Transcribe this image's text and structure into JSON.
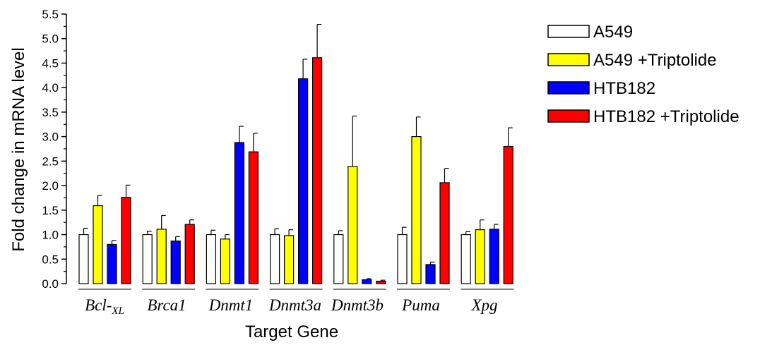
{
  "chart_data": {
    "type": "bar",
    "title": "",
    "xlabel": "Target Gene",
    "ylabel": "Fold change in mRNA level",
    "ylim": [
      0,
      5.5
    ],
    "yticks": [
      "0.0",
      "0.5",
      "1.0",
      "1.5",
      "2.0",
      "2.5",
      "3.0",
      "3.5",
      "4.0",
      "4.5",
      "5.0",
      "5.5"
    ],
    "categories": [
      {
        "base": "Bcl-",
        "sub": "XL"
      },
      {
        "base": "Brca1",
        "sub": ""
      },
      {
        "base": "Dnmt1",
        "sub": ""
      },
      {
        "base": "Dnmt3a",
        "sub": ""
      },
      {
        "base": "Dnmt3b",
        "sub": ""
      },
      {
        "base": "Puma",
        "sub": ""
      },
      {
        "base": "Xpg",
        "sub": ""
      }
    ],
    "series": [
      {
        "name": "A549",
        "color": "#ffffff",
        "values": [
          1.0,
          1.0,
          1.0,
          1.0,
          1.0,
          1.0,
          1.0
        ],
        "errors": [
          0.13,
          0.07,
          0.09,
          0.12,
          0.08,
          0.15,
          0.06
        ]
      },
      {
        "name": "A549 +Triptolide",
        "color": "#ffff00",
        "values": [
          1.59,
          1.11,
          0.91,
          0.98,
          2.39,
          3.0,
          1.1
        ],
        "errors": [
          0.21,
          0.28,
          0.09,
          0.12,
          1.03,
          0.4,
          0.2
        ]
      },
      {
        "name": "HTB182",
        "color": "#0000ff",
        "values": [
          0.8,
          0.87,
          2.88,
          4.18,
          0.08,
          0.39,
          1.11
        ],
        "errors": [
          0.08,
          0.09,
          0.33,
          0.4,
          0.02,
          0.05,
          0.1
        ]
      },
      {
        "name": "HTB182 +Triptolide",
        "color": "#ff0000",
        "values": [
          1.76,
          1.21,
          2.69,
          4.61,
          0.05,
          2.06,
          2.8
        ],
        "errors": [
          0.25,
          0.09,
          0.38,
          0.68,
          0.02,
          0.29,
          0.38
        ]
      }
    ],
    "legend_position": "top-right",
    "grid": false
  }
}
